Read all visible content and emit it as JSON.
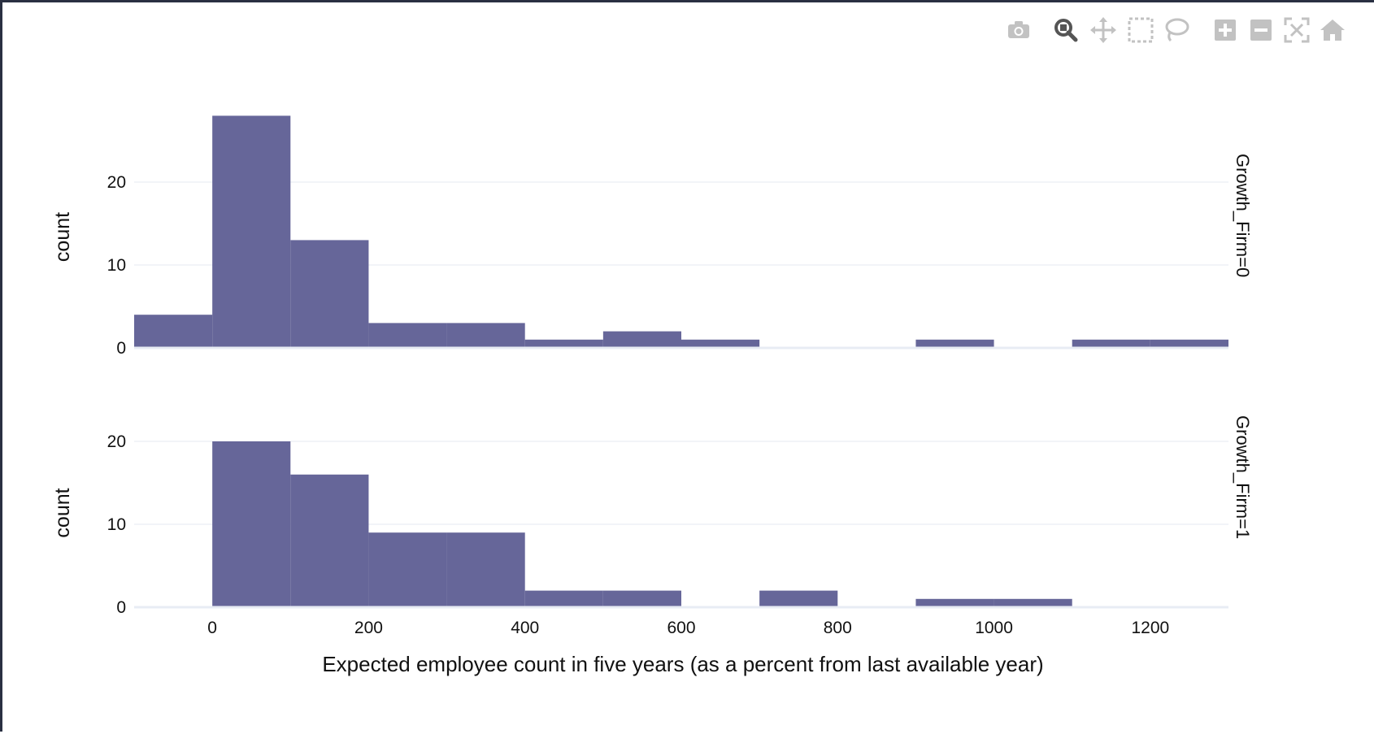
{
  "modebar": {
    "buttons": [
      {
        "name": "camera-icon",
        "title": "Download plot as a png"
      },
      {
        "name": "zoom-icon",
        "title": "Zoom"
      },
      {
        "name": "pan-icon",
        "title": "Pan"
      },
      {
        "name": "box-select-icon",
        "title": "Box Select"
      },
      {
        "name": "lasso-select-icon",
        "title": "Lasso Select"
      },
      {
        "name": "zoom-in-icon",
        "title": "Zoom in"
      },
      {
        "name": "zoom-out-icon",
        "title": "Zoom out"
      },
      {
        "name": "autoscale-icon",
        "title": "Autoscale"
      },
      {
        "name": "reset-axes-icon",
        "title": "Reset axes"
      }
    ]
  },
  "colors": {
    "bar": "#666699",
    "grid": "#e4e8f0",
    "zeroline": "#e8ecf4",
    "icon": "#c2c2c2",
    "icon_active": "#555555"
  },
  "chart_data": {
    "type": "bar",
    "xlabel": "Expected employee count in five years (as a percent from last available year)",
    "xlim": [
      -100,
      1300
    ],
    "xticks": [
      0,
      200,
      400,
      600,
      800,
      1000,
      1200
    ],
    "bin_edges": [
      -100,
      0,
      100,
      200,
      300,
      400,
      500,
      600,
      700,
      800,
      900,
      1000,
      1100,
      1200,
      1300
    ],
    "panels": [
      {
        "facet_label": "Growth_Firm=0",
        "ylabel": "count",
        "ylim": [
          0,
          28
        ],
        "yticks": [
          0,
          10,
          20
        ],
        "counts": [
          4,
          28,
          13,
          3,
          3,
          1,
          2,
          1,
          0,
          0,
          1,
          0,
          1,
          1
        ]
      },
      {
        "facet_label": "Growth_Firm=1",
        "ylabel": "count",
        "ylim": [
          0,
          20
        ],
        "yticks": [
          0,
          10,
          20
        ],
        "counts": [
          0,
          20,
          16,
          9,
          9,
          2,
          2,
          0,
          2,
          0,
          1,
          1,
          0,
          0
        ]
      }
    ]
  }
}
